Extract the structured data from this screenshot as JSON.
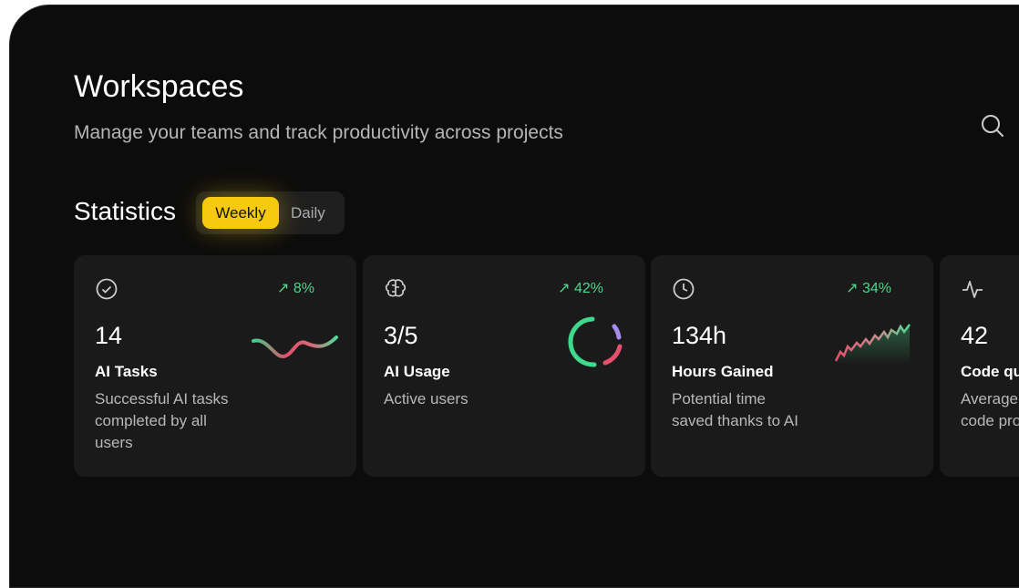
{
  "header": {
    "title": "Workspaces",
    "subtitle": "Manage your teams and track productivity across projects"
  },
  "statistics": {
    "title": "Statistics",
    "tabs": [
      "Weekly",
      "Daily"
    ],
    "cards": [
      {
        "change": "8%",
        "value": "14",
        "title": "AI Tasks",
        "description": "Successful AI tasks completed by all users"
      },
      {
        "change": "42%",
        "value": "3/5",
        "title": "AI Usage",
        "description": "Active users"
      },
      {
        "change": "34%",
        "value": "134h",
        "title": "Hours Gained",
        "description": "Potential time saved thanks to AI"
      },
      {
        "value": "42",
        "title": "Code qu",
        "description": "Average code pro"
      }
    ]
  }
}
